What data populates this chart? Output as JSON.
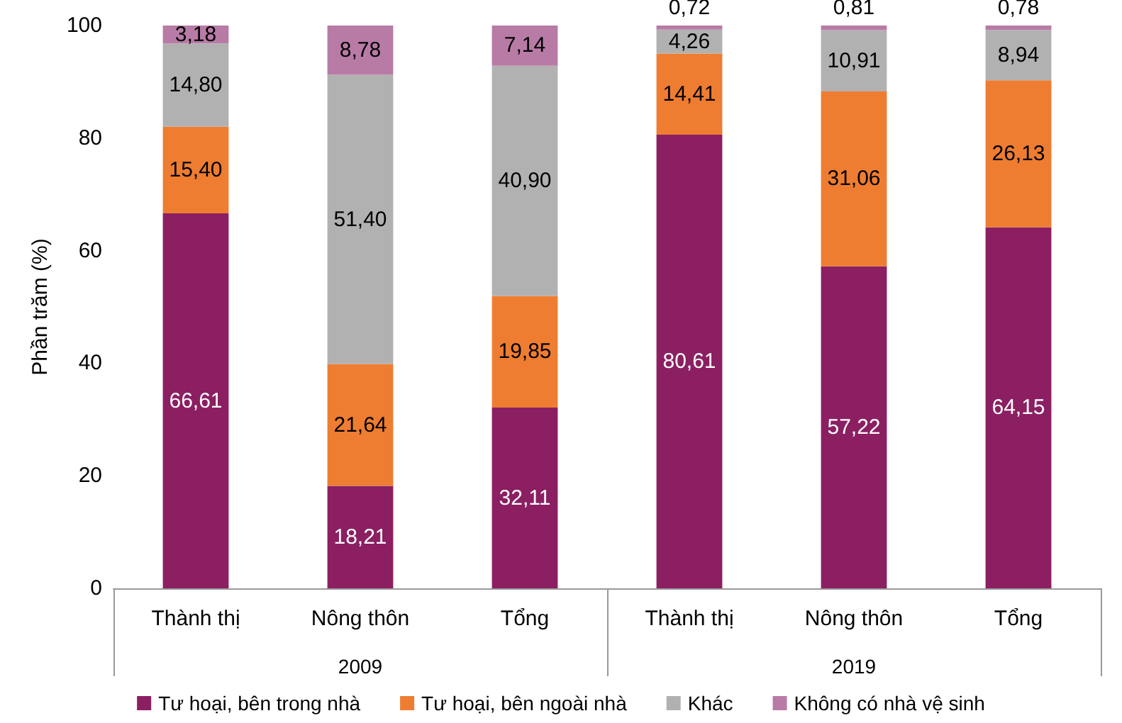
{
  "chart_data": {
    "type": "bar",
    "stacked": true,
    "ylabel": "Phần trăm (%)",
    "categories": [
      "Thành thị",
      "Nông thôn",
      "Tổng",
      "Thành thị",
      "Nông thôn",
      "Tổng"
    ],
    "annotations": [
      "2009",
      "2019"
    ],
    "series": [
      {
        "name": "Tư hoại, bên trong nhà",
        "color": "#8b1f62",
        "values": [
          66.61,
          18.21,
          32.11,
          80.61,
          57.22,
          64.15
        ],
        "value_labels": [
          "66,61",
          "18,21",
          "32,11",
          "80,61",
          "57,22",
          "64,15"
        ]
      },
      {
        "name": "Tư hoại, bên ngoài nhà",
        "color": "#ee7d31",
        "values": [
          15.4,
          21.64,
          19.85,
          14.41,
          31.06,
          26.13
        ],
        "value_labels": [
          "15,40",
          "21,64",
          "19,85",
          "14,41",
          "31,06",
          "26,13"
        ]
      },
      {
        "name": "Khác",
        "color": "#b1b1b1",
        "values": [
          14.8,
          51.4,
          40.9,
          4.26,
          10.91,
          8.94
        ],
        "value_labels": [
          "14,80",
          "51,40",
          "40,90",
          "4,26",
          "10,91",
          "8,94"
        ]
      },
      {
        "name": "Không có nhà vệ sinh",
        "color": "#b87ba6",
        "values": [
          3.18,
          8.78,
          7.14,
          0.72,
          0.81,
          0.78
        ],
        "value_labels": [
          "3,18",
          "8,78",
          "7,14",
          "0,72",
          "0,81",
          "0,78"
        ]
      }
    ],
    "ylim": [
      0,
      100
    ],
    "yticks": [
      0,
      20,
      40,
      60,
      80,
      100
    ],
    "grid": false,
    "legend": "bottom"
  }
}
